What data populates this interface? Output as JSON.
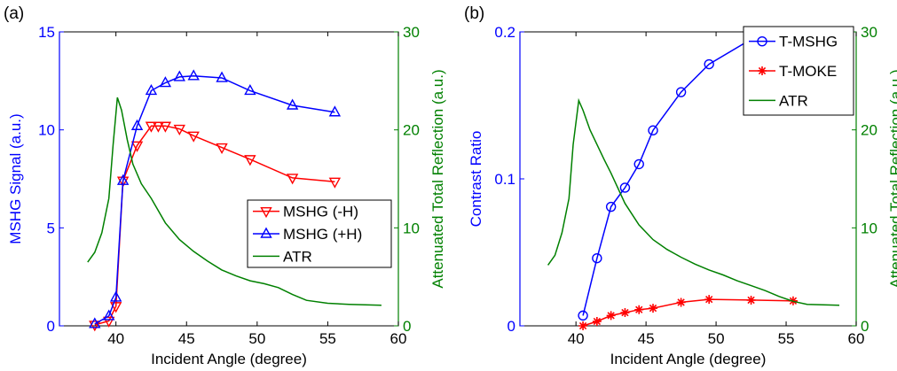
{
  "figure": {
    "panel_a_label": "(a)",
    "panel_b_label": "(b)"
  },
  "colors": {
    "blue": "#0000ff",
    "red": "#ff0000",
    "green": "#008000",
    "axis": "#000000"
  },
  "chart_data": [
    {
      "type": "line",
      "panel": "(a)",
      "xlabel": "Incident Angle (degree)",
      "ylabel": "MSHG Signal (a.u.)",
      "y2label": "Attenuated Total Reflection (a.u.)",
      "xlim": [
        36,
        60
      ],
      "ylim": [
        0,
        15
      ],
      "y2lim": [
        0,
        30
      ],
      "xticks": [
        40,
        45,
        50,
        55,
        60
      ],
      "yticks": [
        0,
        5,
        10,
        15
      ],
      "y2ticks": [
        0,
        10,
        20,
        30
      ],
      "grid": false,
      "legend_position": "bottom-right",
      "series": [
        {
          "name": "MSHG (-H)",
          "axis": "left",
          "color": "#ff0000",
          "marker": "triangle-down",
          "x": [
            38.5,
            39.5,
            40.0,
            40.5,
            41.5,
            42.5,
            43.0,
            43.5,
            44.5,
            45.5,
            47.5,
            49.5,
            52.5,
            55.5
          ],
          "y": [
            0.05,
            0.25,
            1.0,
            7.4,
            9.2,
            10.2,
            10.2,
            10.2,
            10.05,
            9.7,
            9.1,
            8.5,
            7.55,
            7.35
          ]
        },
        {
          "name": "MSHG (+H)",
          "axis": "left",
          "color": "#0000ff",
          "marker": "triangle-up",
          "x": [
            38.5,
            39.5,
            40.0,
            40.5,
            41.5,
            42.5,
            43.5,
            44.5,
            45.5,
            47.5,
            49.5,
            52.5,
            55.5
          ],
          "y": [
            0.1,
            0.5,
            1.45,
            7.4,
            10.2,
            12.0,
            12.4,
            12.7,
            12.75,
            12.65,
            12.0,
            11.25,
            10.9
          ]
        },
        {
          "name": "ATR",
          "axis": "right",
          "color": "#008000",
          "marker": "none",
          "x": [
            38.0,
            38.5,
            39.0,
            39.5,
            39.8,
            40.1,
            40.4,
            40.8,
            41.2,
            41.8,
            42.5,
            43.5,
            44.5,
            45.5,
            46.5,
            47.5,
            48.5,
            49.5,
            50.5,
            51.5,
            52.5,
            53.5,
            55.0,
            56.5,
            58.8
          ],
          "y": [
            6.5,
            7.5,
            9.5,
            13.0,
            18.5,
            23.3,
            22.0,
            19.0,
            16.5,
            14.5,
            13.0,
            10.5,
            8.8,
            7.6,
            6.6,
            5.7,
            5.1,
            4.6,
            4.3,
            3.9,
            3.2,
            2.6,
            2.3,
            2.2,
            2.1
          ]
        }
      ]
    },
    {
      "type": "line",
      "panel": "(b)",
      "xlabel": "Incident Angle (degree)",
      "ylabel": "Contrast Ratio",
      "y2label": "Attenuated Total Reflection (a.u.)",
      "xlim": [
        36,
        60
      ],
      "ylim": [
        0,
        0.2
      ],
      "y2lim": [
        0,
        30
      ],
      "xticks": [
        40,
        45,
        50,
        55,
        60
      ],
      "yticks": [
        0,
        0.1,
        0.2
      ],
      "y2ticks": [
        0,
        10,
        20,
        30
      ],
      "grid": false,
      "legend_position": "top-right",
      "series": [
        {
          "name": "T-MSHG",
          "axis": "left",
          "color": "#0000ff",
          "marker": "circle",
          "x": [
            40.5,
            41.5,
            42.5,
            43.5,
            44.5,
            45.5,
            47.5,
            49.5,
            52.5,
            55.5
          ],
          "y": [
            0.007,
            0.046,
            0.081,
            0.094,
            0.11,
            0.133,
            0.159,
            0.178,
            0.195,
            0.2
          ]
        },
        {
          "name": "T-MOKE",
          "axis": "left",
          "color": "#ff0000",
          "marker": "star",
          "x": [
            40.5,
            41.5,
            42.5,
            43.5,
            44.5,
            45.5,
            47.5,
            49.5,
            52.5,
            55.5
          ],
          "y": [
            0.0,
            0.003,
            0.007,
            0.009,
            0.011,
            0.012,
            0.016,
            0.018,
            0.0175,
            0.017
          ]
        },
        {
          "name": "ATR",
          "axis": "right",
          "color": "#008000",
          "marker": "none",
          "x": [
            38.0,
            38.5,
            39.0,
            39.5,
            39.8,
            40.2,
            40.5,
            41.0,
            41.5,
            42.0,
            42.5,
            43.5,
            44.5,
            45.5,
            46.5,
            47.5,
            48.5,
            49.5,
            50.5,
            51.5,
            52.5,
            53.5,
            54.5,
            55.5,
            56.5,
            58.8
          ],
          "y": [
            6.2,
            7.2,
            9.5,
            13.0,
            18.5,
            23.0,
            22.0,
            20.0,
            18.5,
            17.0,
            15.6,
            12.5,
            10.3,
            8.8,
            7.8,
            7.0,
            6.3,
            5.7,
            5.2,
            4.6,
            4.1,
            3.6,
            3.0,
            2.5,
            2.2,
            2.1
          ]
        }
      ]
    }
  ]
}
